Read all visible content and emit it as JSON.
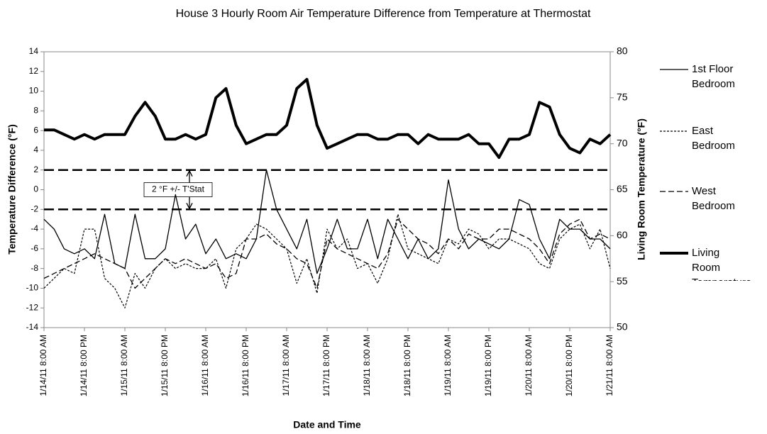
{
  "chart_data": {
    "type": "line",
    "title": "House 3 Hourly Room Air Temperature Difference from Temperature at Thermostat",
    "xlabel": "Date and Time",
    "ylabel": "Temperature Difference (°F)",
    "y2label": "Living Room Temperature (°F)",
    "annotation": "2 °F +/- T'Stat",
    "reference_lines": [
      2,
      -2
    ],
    "categories": [
      "1/14/11 8:00 AM",
      null,
      null,
      null,
      "1/14/11 8:00 PM",
      null,
      null,
      null,
      "1/15/11 8:00 AM",
      null,
      null,
      null,
      "1/15/11 8:00 PM",
      null,
      null,
      null,
      "1/16/11 8:00 AM",
      null,
      null,
      null,
      "1/16/11 8:00 PM",
      null,
      null,
      null,
      "1/17/11 8:00 AM",
      null,
      null,
      null,
      "1/17/11 8:00 PM",
      null,
      null,
      null,
      "1/18/11 8:00 AM",
      null,
      null,
      null,
      "1/18/11 8:00 PM",
      null,
      null,
      null,
      "1/19/11 8:00 AM",
      null,
      null,
      null,
      "1/19/11 8:00 PM",
      null,
      null,
      null,
      "1/20/11 8:00 AM",
      null,
      null,
      null,
      "1/20/11 8:00 PM",
      null,
      null,
      null,
      "1/21/11 8:00 AM"
    ],
    "ylim": [
      -14,
      14
    ],
    "yticks": [
      -14,
      -12,
      -10,
      -8,
      -6,
      -4,
      -2,
      0,
      2,
      4,
      6,
      8,
      10,
      12,
      14
    ],
    "y2lim": [
      50,
      80
    ],
    "y2ticks": [
      50,
      55,
      60,
      65,
      70,
      75,
      80
    ],
    "grid": false,
    "legend": "right",
    "series": [
      {
        "name": "1st Floor Bedroom",
        "color": "#000000",
        "dash": "solid",
        "width": 1.3,
        "values": [
          -3,
          -4,
          -6,
          -6.5,
          -6,
          -7,
          -2.5,
          -7.5,
          -8,
          -2.5,
          -7,
          -7,
          -6,
          -0.5,
          -5,
          -3.5,
          -6.5,
          -5,
          -7,
          -6.5,
          -7,
          -5,
          2,
          -2,
          -4,
          -6,
          -3,
          -8.5,
          -6,
          -3,
          -6,
          -6,
          -3,
          -7,
          -3,
          -5,
          -7,
          -5,
          -7,
          -6,
          1,
          -4,
          -6,
          -5,
          -5.5,
          -6,
          -5,
          -1,
          -1.5,
          -5,
          -7,
          -3,
          -4,
          -4,
          -5,
          -5,
          -6
        ]
      },
      {
        "name": "East Bedroom",
        "color": "#000000",
        "dash": "short",
        "width": 1.2,
        "values": [
          -10,
          -9,
          -8,
          -8.5,
          -4,
          -4,
          -9,
          -10,
          -12,
          -8.5,
          -10,
          -8,
          -7,
          -8,
          -7.5,
          -8,
          -8,
          -7,
          -10,
          -6,
          -5,
          -3.5,
          -4,
          -5,
          -6,
          -9.5,
          -7,
          -10.5,
          -4,
          -6,
          -5,
          -8,
          -7.5,
          -9.5,
          -7,
          -2.5,
          -6,
          -6.5,
          -7,
          -7.5,
          -5,
          -5.5,
          -4,
          -4.5,
          -6,
          -5,
          -5,
          -5.5,
          -6,
          -7.5,
          -8,
          -5,
          -4,
          -3.5,
          -6,
          -4,
          -8
        ]
      },
      {
        "name": "West Bedroom",
        "color": "#000000",
        "dash": "long",
        "width": 1.3,
        "values": [
          -9,
          -8.5,
          -8,
          -7.5,
          -7,
          -6.5,
          -7,
          -7.5,
          -8,
          -10,
          -9,
          -8,
          -7,
          -7.5,
          -7,
          -7.5,
          -8,
          -7.5,
          -9,
          -8.5,
          -5,
          -5,
          -4.5,
          -5.5,
          -6,
          -7,
          -7.5,
          -10,
          -5,
          -6,
          -6.5,
          -7,
          -7.5,
          -8,
          -6.5,
          -3,
          -4,
          -5,
          -5.5,
          -6.5,
          -5,
          -6,
          -4.5,
          -5,
          -5,
          -4,
          -4,
          -4.5,
          -5,
          -6,
          -7.5,
          -4.5,
          -3.5,
          -3,
          -5,
          -4.5,
          -5
        ]
      },
      {
        "name": "Living Room Temperature",
        "color": "#000000",
        "dash": "solid",
        "width": 4,
        "axis": "y2",
        "values": [
          71.5,
          71.5,
          71,
          70.5,
          71,
          70.5,
          71,
          71,
          71,
          73,
          74.5,
          73,
          70.5,
          70.5,
          71,
          70.5,
          71,
          75,
          76,
          72,
          70,
          70.5,
          71,
          71,
          72,
          76,
          77,
          72,
          69.5,
          70,
          70.5,
          71,
          71,
          70.5,
          70.5,
          71,
          71,
          70,
          71,
          70.5,
          70.5,
          70.5,
          71,
          70,
          70,
          68.5,
          70.5,
          70.5,
          71,
          74.5,
          74,
          71,
          69.5,
          69,
          70.5,
          70,
          71
        ]
      }
    ]
  }
}
